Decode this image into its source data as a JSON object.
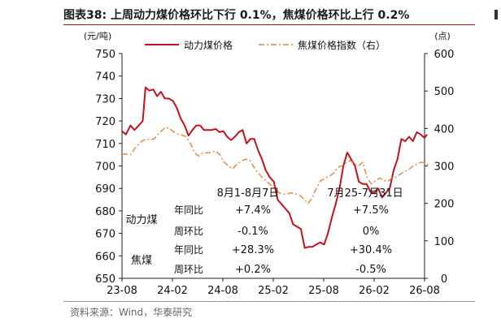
{
  "figure": {
    "title": "图表38:  上周动力煤价格环比下行 0.1%，焦煤价格环比上行 0.2%",
    "source": "资料来源：Wind，华泰研究"
  },
  "colors": {
    "thermal_coal": "#c0141c",
    "coking_coal": "#e8823a",
    "axis": "#222222",
    "title_rule": "#8a1a1a"
  },
  "chart_data": {
    "type": "line",
    "y_left": {
      "unit": "(元/吨)",
      "range": [
        650,
        750
      ],
      "ticks": [
        650,
        660,
        670,
        680,
        690,
        700,
        710,
        720,
        730,
        740,
        750
      ]
    },
    "y_right": {
      "unit": "(点)",
      "range": [
        0,
        600
      ],
      "ticks": [
        0,
        100,
        200,
        300,
        400,
        500,
        600
      ]
    },
    "x_axis": {
      "ticks": [
        "23-08",
        "24-02",
        "24-08",
        "25-02",
        "25-08",
        "26-02",
        "26-08"
      ],
      "range": [
        "2023-08",
        "2026-08"
      ]
    },
    "legend": {
      "position": "top",
      "items": [
        "动力煤价格",
        "焦煤价格指数（右）"
      ]
    },
    "grid": false,
    "series": [
      {
        "name": "动力煤价格",
        "axis": "left",
        "style": "solid",
        "points": [
          [
            "2023-08-01",
            715.5
          ],
          [
            "2023-08-15",
            714
          ],
          [
            "2023-09-01",
            718
          ],
          [
            "2023-09-15",
            716
          ],
          [
            "2023-10-01",
            718
          ],
          [
            "2023-10-15",
            720
          ],
          [
            "2023-10-25",
            735
          ],
          [
            "2023-11-08",
            733.5
          ],
          [
            "2023-11-22",
            734
          ],
          [
            "2023-12-06",
            731
          ],
          [
            "2023-12-20",
            733
          ],
          [
            "2024-01-03",
            730
          ],
          [
            "2024-01-17",
            730
          ],
          [
            "2024-02-01",
            729
          ],
          [
            "2024-02-15",
            726
          ],
          [
            "2024-03-01",
            721
          ],
          [
            "2024-03-15",
            718
          ],
          [
            "2024-03-29",
            713.5
          ],
          [
            "2024-04-12",
            716
          ],
          [
            "2024-04-26",
            718
          ],
          [
            "2024-05-10",
            718
          ],
          [
            "2024-05-24",
            716
          ],
          [
            "2024-06-07",
            716
          ],
          [
            "2024-06-21",
            716
          ],
          [
            "2024-07-05",
            716.5
          ],
          [
            "2024-07-19",
            715
          ],
          [
            "2024-08-02",
            715.5
          ],
          [
            "2024-08-16",
            713
          ],
          [
            "2024-08-30",
            711.5
          ],
          [
            "2024-09-13",
            713
          ],
          [
            "2024-09-27",
            715
          ],
          [
            "2024-10-11",
            716
          ],
          [
            "2024-10-25",
            710
          ],
          [
            "2024-11-08",
            712
          ],
          [
            "2024-11-22",
            712
          ],
          [
            "2024-12-06",
            707
          ],
          [
            "2024-12-20",
            703
          ],
          [
            "2025-01-03",
            698
          ],
          [
            "2025-01-17",
            695
          ],
          [
            "2025-02-01",
            693
          ],
          [
            "2025-02-15",
            685
          ],
          [
            "2025-03-01",
            683
          ],
          [
            "2025-03-15",
            681
          ],
          [
            "2025-03-29",
            679
          ],
          [
            "2025-04-12",
            674
          ],
          [
            "2025-04-26",
            673
          ],
          [
            "2025-05-10",
            672
          ],
          [
            "2025-05-24",
            663.5
          ],
          [
            "2025-06-07",
            664
          ],
          [
            "2025-06-21",
            664
          ],
          [
            "2025-07-05",
            665
          ],
          [
            "2025-07-19",
            666
          ],
          [
            "2025-08-02",
            665
          ],
          [
            "2025-08-16",
            670
          ],
          [
            "2025-08-30",
            677
          ],
          [
            "2025-09-13",
            683
          ],
          [
            "2025-09-27",
            690
          ],
          [
            "2025-10-11",
            700
          ],
          [
            "2025-10-25",
            706
          ],
          [
            "2025-11-08",
            703
          ],
          [
            "2025-11-22",
            700
          ],
          [
            "2025-12-06",
            693
          ],
          [
            "2025-12-20",
            692
          ],
          [
            "2026-01-03",
            692
          ],
          [
            "2026-01-17",
            688.5
          ],
          [
            "2026-01-31",
            688
          ],
          [
            "2026-02-14",
            690
          ],
          [
            "2026-02-28",
            686
          ],
          [
            "2026-03-14",
            688
          ],
          [
            "2026-03-28",
            690
          ],
          [
            "2026-04-11",
            698
          ],
          [
            "2026-04-25",
            703
          ],
          [
            "2026-05-09",
            712
          ],
          [
            "2026-05-23",
            711
          ],
          [
            "2026-06-06",
            713
          ],
          [
            "2026-06-20",
            711
          ],
          [
            "2026-07-04",
            715
          ],
          [
            "2026-07-18",
            714
          ],
          [
            "2026-08-01",
            712.5
          ],
          [
            "2026-08-10",
            714
          ]
        ]
      },
      {
        "name": "焦煤价格指数（右）",
        "axis": "right",
        "style": "dash-dot",
        "points": [
          [
            "2023-08-01",
            330
          ],
          [
            "2023-08-15",
            332
          ],
          [
            "2023-09-01",
            330
          ],
          [
            "2023-09-20",
            350
          ],
          [
            "2023-10-10",
            365
          ],
          [
            "2023-10-25",
            372
          ],
          [
            "2023-11-10",
            370
          ],
          [
            "2023-11-25",
            372
          ],
          [
            "2023-12-10",
            385
          ],
          [
            "2024-01-05",
            403
          ],
          [
            "2024-01-20",
            400
          ],
          [
            "2024-02-05",
            390
          ],
          [
            "2024-02-20",
            385
          ],
          [
            "2024-03-05",
            382
          ],
          [
            "2024-03-20",
            378
          ],
          [
            "2024-04-05",
            360
          ],
          [
            "2024-04-20",
            335
          ],
          [
            "2024-05-05",
            326
          ],
          [
            "2024-05-20",
            335
          ],
          [
            "2024-06-05",
            335
          ],
          [
            "2024-06-20",
            336
          ],
          [
            "2024-07-05",
            340
          ],
          [
            "2024-07-20",
            330
          ],
          [
            "2024-08-05",
            310
          ],
          [
            "2024-08-20",
            300
          ],
          [
            "2024-09-05",
            292
          ],
          [
            "2024-09-20",
            305
          ],
          [
            "2024-10-05",
            312
          ],
          [
            "2024-10-20",
            318
          ],
          [
            "2024-11-05",
            316
          ],
          [
            "2024-11-20",
            298
          ],
          [
            "2024-12-05",
            282
          ],
          [
            "2024-12-20",
            270
          ],
          [
            "2025-01-05",
            260
          ],
          [
            "2025-01-20",
            250
          ],
          [
            "2025-02-05",
            240
          ],
          [
            "2025-02-20",
            228
          ],
          [
            "2025-03-05",
            225
          ],
          [
            "2025-03-20",
            225
          ],
          [
            "2025-04-05",
            228
          ],
          [
            "2025-04-20",
            225
          ],
          [
            "2025-05-05",
            222
          ],
          [
            "2025-05-20",
            212
          ],
          [
            "2025-06-05",
            200
          ],
          [
            "2025-06-20",
            215
          ],
          [
            "2025-07-05",
            240
          ],
          [
            "2025-07-20",
            260
          ],
          [
            "2025-08-05",
            268
          ],
          [
            "2025-08-20",
            272
          ],
          [
            "2025-09-05",
            280
          ],
          [
            "2025-09-20",
            296
          ],
          [
            "2025-10-05",
            300
          ],
          [
            "2025-10-20",
            308
          ],
          [
            "2025-11-05",
            315
          ],
          [
            "2025-11-20",
            305
          ],
          [
            "2025-12-05",
            300
          ],
          [
            "2025-12-20",
            310
          ],
          [
            "2026-01-05",
            268
          ],
          [
            "2026-01-20",
            252
          ],
          [
            "2026-02-05",
            260
          ],
          [
            "2026-02-20",
            268
          ],
          [
            "2026-03-05",
            262
          ],
          [
            "2026-03-20",
            258
          ],
          [
            "2026-04-05",
            268
          ],
          [
            "2026-04-20",
            270
          ],
          [
            "2026-05-05",
            278
          ],
          [
            "2026-05-20",
            285
          ],
          [
            "2026-06-05",
            290
          ],
          [
            "2026-06-20",
            300
          ],
          [
            "2026-07-05",
            305
          ],
          [
            "2026-07-20",
            310
          ],
          [
            "2026-08-05",
            308
          ],
          [
            "2026-08-15",
            302
          ]
        ]
      }
    ]
  },
  "table": {
    "period_headers": [
      "8月1-8月7日",
      "7月25-7月31日"
    ],
    "groups": [
      {
        "label": "动力煤",
        "rows": [
          {
            "metric": "年同比",
            "current": "+7.4%",
            "previous": "+7.5%"
          },
          {
            "metric": "周环比",
            "current": "-0.1%",
            "previous": "0%"
          }
        ]
      },
      {
        "label": "焦煤",
        "rows": [
          {
            "metric": "年同比",
            "current": "+28.3%",
            "previous": "+30.4%"
          },
          {
            "metric": "周环比",
            "current": "+0.2%",
            "previous": "-0.5%"
          }
        ]
      }
    ]
  }
}
